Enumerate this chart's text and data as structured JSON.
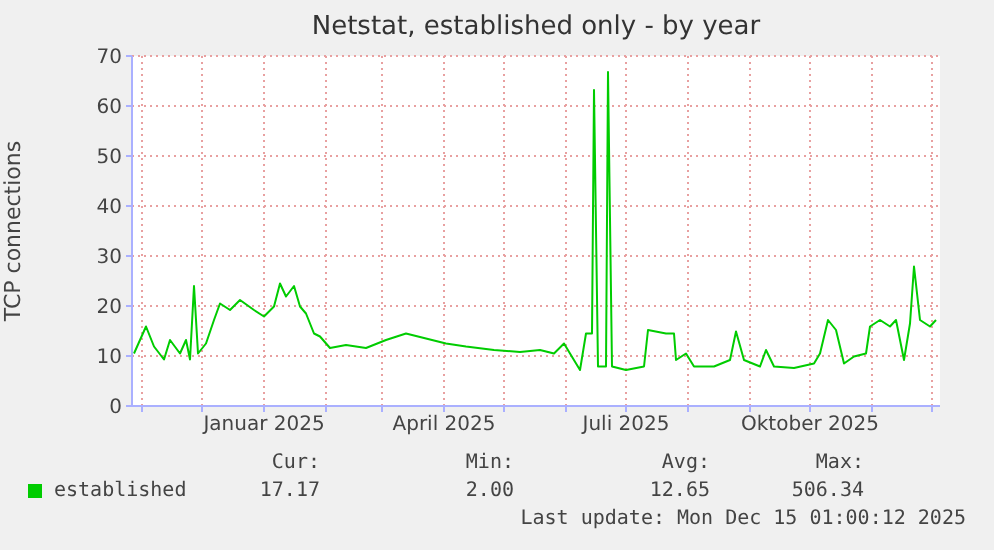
{
  "chart_data": {
    "type": "line",
    "title": "Netstat, established only - by year",
    "ylabel": "TCP connections",
    "xlim": [
      "2024-10-27",
      "2025-12-05"
    ],
    "xticks": [
      {
        "value": "2024-11-01",
        "label": null
      },
      {
        "value": "2024-12-01",
        "label": null
      },
      {
        "value": "2025-01-01",
        "label": "Januar 2025"
      },
      {
        "value": "2025-02-01",
        "label": null
      },
      {
        "value": "2025-03-01",
        "label": null
      },
      {
        "value": "2025-04-01",
        "label": "April 2025"
      },
      {
        "value": "2025-05-01",
        "label": null
      },
      {
        "value": "2025-06-01",
        "label": null
      },
      {
        "value": "2025-07-01",
        "label": "Juli 2025"
      },
      {
        "value": "2025-08-01",
        "label": null
      },
      {
        "value": "2025-09-01",
        "label": null
      },
      {
        "value": "2025-10-01",
        "label": "Oktober 2025"
      },
      {
        "value": "2025-11-01",
        "label": null
      },
      {
        "value": "2025-12-01",
        "label": null
      }
    ],
    "ylim": [
      0,
      70
    ],
    "yticks": [
      0,
      10,
      20,
      30,
      40,
      50,
      60,
      70
    ],
    "grid": true,
    "legend": "bottom",
    "marker": "none",
    "line_style": "solid",
    "x": [
      "2024-10-28",
      "2024-10-31",
      "2024-11-03",
      "2024-11-07",
      "2024-11-12",
      "2024-11-15",
      "2024-11-20",
      "2024-11-23",
      "2024-11-25",
      "2024-11-27",
      "2024-11-29",
      "2024-12-03",
      "2024-12-07",
      "2024-12-10",
      "2024-12-15",
      "2024-12-20",
      "2024-12-27",
      "2025-01-01",
      "2025-01-06",
      "2025-01-09",
      "2025-01-12",
      "2025-01-16",
      "2025-01-19",
      "2025-01-22",
      "2025-01-26",
      "2025-01-29",
      "2025-02-03",
      "2025-02-11",
      "2025-02-21",
      "2025-03-03",
      "2025-03-13",
      "2025-03-23",
      "2025-04-02",
      "2025-04-12",
      "2025-04-26",
      "2025-05-09",
      "2025-05-19",
      "2025-05-26",
      "2025-05-31",
      "2025-06-03",
      "2025-06-08",
      "2025-06-11",
      "2025-06-14",
      "2025-06-15",
      "2025-06-17",
      "2025-06-21",
      "2025-06-22",
      "2025-06-24",
      "2025-07-01",
      "2025-07-10",
      "2025-07-12",
      "2025-07-21",
      "2025-07-25",
      "2025-07-26",
      "2025-07-31",
      "2025-08-04",
      "2025-08-14",
      "2025-08-22",
      "2025-08-25",
      "2025-08-29",
      "2025-09-06",
      "2025-09-09",
      "2025-09-13",
      "2025-09-23",
      "2025-10-03",
      "2025-10-06",
      "2025-10-10",
      "2025-10-14",
      "2025-10-18",
      "2025-10-23",
      "2025-10-29",
      "2025-10-31",
      "2025-11-05",
      "2025-11-10",
      "2025-11-13",
      "2025-11-17",
      "2025-11-20",
      "2025-11-22",
      "2025-11-25",
      "2025-11-30",
      "2025-12-03"
    ],
    "series": [
      {
        "name": "established",
        "color": "#00cc00",
        "values": [
          10.5,
          13.2,
          15.9,
          11.9,
          9.3,
          13.2,
          10.5,
          13.2,
          9.3,
          24,
          10.5,
          12.5,
          17.2,
          20.5,
          19.2,
          21.2,
          19.2,
          17.9,
          19.9,
          24.5,
          21.9,
          24,
          19.9,
          18.5,
          14.5,
          13.9,
          11.6,
          12.2,
          11.6,
          13.2,
          14.5,
          13.5,
          12.5,
          11.9,
          11.2,
          10.8,
          11.2,
          10.5,
          12.5,
          10.5,
          7.2,
          14.5,
          14.5,
          63.2,
          7.9,
          7.9,
          66.8,
          7.9,
          7.2,
          7.9,
          15.2,
          14.5,
          14.5,
          9.2,
          10.5,
          7.9,
          7.9,
          9.2,
          14.9,
          9.2,
          7.9,
          11.2,
          7.9,
          7.6,
          8.5,
          10.5,
          17.2,
          15.2,
          8.5,
          9.9,
          10.5,
          15.9,
          17.2,
          15.9,
          17.2,
          9.2,
          16.5,
          27.9,
          17.2,
          15.9,
          17.2
        ]
      }
    ],
    "annotations": [
      "Cur:",
      "17.17",
      "Min:",
      "2.00",
      "Avg:",
      "12.65",
      "Max:",
      "506.34",
      "Last update: Mon Dec 15 01:00:12 2025"
    ]
  }
}
